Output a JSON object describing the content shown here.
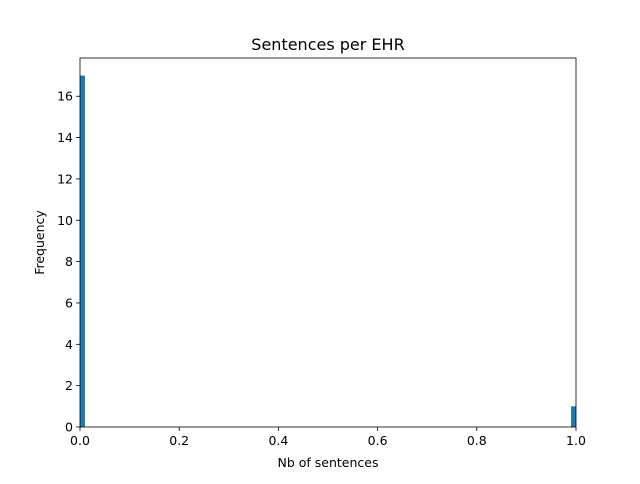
{
  "chart_data": {
    "type": "bar",
    "title": "Sentences per EHR",
    "xlabel": "Nb of sentences",
    "ylabel": "Frequency",
    "xlim": [
      0,
      1
    ],
    "ylim": [
      0,
      17.85
    ],
    "grid": false,
    "legend": "none",
    "bar_color": "#1f77b4",
    "bins": [
      {
        "x0": 0.0,
        "x1": 0.01,
        "value": 17
      },
      {
        "x0": 0.99,
        "x1": 1.0,
        "value": 1
      }
    ],
    "x_ticks": [
      {
        "value": 0.0,
        "label": "0.0"
      },
      {
        "value": 0.2,
        "label": "0.2"
      },
      {
        "value": 0.4,
        "label": "0.4"
      },
      {
        "value": 0.6,
        "label": "0.6"
      },
      {
        "value": 0.8,
        "label": "0.8"
      },
      {
        "value": 1.0,
        "label": "1.0"
      }
    ],
    "y_ticks": [
      {
        "value": 0,
        "label": "0"
      },
      {
        "value": 2,
        "label": "2"
      },
      {
        "value": 4,
        "label": "4"
      },
      {
        "value": 6,
        "label": "6"
      },
      {
        "value": 8,
        "label": "8"
      },
      {
        "value": 10,
        "label": "10"
      },
      {
        "value": 12,
        "label": "12"
      },
      {
        "value": 14,
        "label": "14"
      },
      {
        "value": 16,
        "label": "16"
      }
    ]
  }
}
